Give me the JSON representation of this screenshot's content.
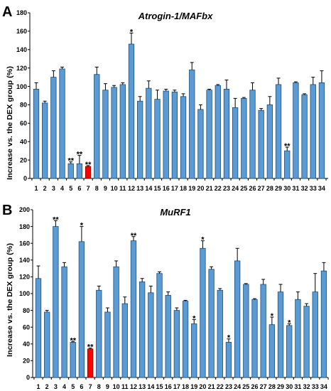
{
  "figure": {
    "background": "#ffffff"
  },
  "chart_data": [
    {
      "panel_label": "A",
      "type": "bar",
      "title": "Atrogin-1/MAFbx",
      "ylabel": "Increase vs. the DEX group (%)",
      "ylim": [
        0,
        180
      ],
      "yticks": [
        0,
        20,
        40,
        60,
        80,
        100,
        120,
        140,
        160,
        180
      ],
      "grid": false,
      "categories": [
        "1",
        "2",
        "3",
        "4",
        "5",
        "6",
        "7",
        "8",
        "9",
        "10",
        "11",
        "12",
        "13",
        "14",
        "15",
        "16",
        "17",
        "18",
        "19",
        "20",
        "21",
        "22",
        "23",
        "24",
        "25",
        "26",
        "27",
        "28",
        "29",
        "30",
        "31",
        "32",
        "33",
        "34"
      ],
      "values": [
        97,
        82,
        110,
        119,
        16,
        16,
        13,
        113,
        96,
        99,
        102,
        146,
        84,
        98,
        86,
        95,
        94,
        89,
        118,
        75,
        96,
        101,
        97,
        77,
        87,
        96,
        74,
        80,
        102,
        30,
        104,
        91,
        102,
        104
      ],
      "error_bars": [
        7,
        2,
        7,
        2,
        2,
        9,
        1,
        8,
        7,
        2,
        2,
        12,
        5,
        8,
        10,
        2,
        2,
        3,
        8,
        5,
        1,
        1,
        10,
        10,
        1,
        8,
        2,
        9,
        7,
        4,
        1,
        1,
        8,
        13
      ],
      "significance": [
        "",
        "",
        "",
        "",
        "**",
        "**",
        "**",
        "",
        "",
        "",
        "",
        "*",
        "",
        "",
        "",
        "",
        "",
        "",
        "",
        "",
        "",
        "",
        "",
        "",
        "",
        "",
        "",
        "",
        "",
        "**",
        "",
        "",
        "",
        ""
      ],
      "bar_colors": [
        "#5b9bd5",
        "#5b9bd5",
        "#5b9bd5",
        "#5b9bd5",
        "#5b9bd5",
        "#5b9bd5",
        "#ff0000",
        "#5b9bd5",
        "#5b9bd5",
        "#5b9bd5",
        "#5b9bd5",
        "#5b9bd5",
        "#5b9bd5",
        "#5b9bd5",
        "#5b9bd5",
        "#5b9bd5",
        "#5b9bd5",
        "#5b9bd5",
        "#5b9bd5",
        "#5b9bd5",
        "#5b9bd5",
        "#5b9bd5",
        "#5b9bd5",
        "#5b9bd5",
        "#5b9bd5",
        "#5b9bd5",
        "#5b9bd5",
        "#5b9bd5",
        "#5b9bd5",
        "#5b9bd5",
        "#5b9bd5",
        "#5b9bd5",
        "#5b9bd5",
        "#5b9bd5"
      ],
      "bar_edge_colors": [
        "#1f4e79",
        "#1f4e79",
        "#1f4e79",
        "#1f4e79",
        "#1f4e79",
        "#1f4e79",
        "#800000",
        "#1f4e79",
        "#1f4e79",
        "#1f4e79",
        "#1f4e79",
        "#1f4e79",
        "#1f4e79",
        "#1f4e79",
        "#1f4e79",
        "#1f4e79",
        "#1f4e79",
        "#1f4e79",
        "#1f4e79",
        "#1f4e79",
        "#1f4e79",
        "#1f4e79",
        "#1f4e79",
        "#1f4e79",
        "#1f4e79",
        "#1f4e79",
        "#1f4e79",
        "#1f4e79",
        "#1f4e79",
        "#1f4e79",
        "#1f4e79",
        "#1f4e79",
        "#1f4e79",
        "#1f4e79"
      ],
      "axis_color": "#000000",
      "error_bar_color": "#000000"
    },
    {
      "panel_label": "B",
      "type": "bar",
      "title": "MuRF1",
      "ylabel": "Increase vs. the DEX group (%)",
      "ylim": [
        0,
        200
      ],
      "yticks": [
        0,
        20,
        40,
        60,
        80,
        100,
        120,
        140,
        160,
        180,
        200
      ],
      "grid": false,
      "categories": [
        "1",
        "2",
        "3",
        "4",
        "5",
        "6",
        "7",
        "8",
        "9",
        "10",
        "11",
        "12",
        "13",
        "14",
        "15",
        "16",
        "17",
        "18",
        "19",
        "20",
        "21",
        "22",
        "23",
        "24",
        "25",
        "26",
        "27",
        "28",
        "29",
        "30",
        "31",
        "32",
        "33",
        "34"
      ],
      "values": [
        118,
        78,
        180,
        132,
        42,
        162,
        34,
        104,
        78,
        132,
        88,
        163,
        114,
        101,
        124,
        98,
        80,
        91,
        64,
        154,
        129,
        104,
        42,
        139,
        111,
        93,
        111,
        63,
        102,
        62,
        93,
        85,
        102,
        127
      ],
      "error_bars": [
        15,
        2,
        7,
        5,
        1,
        18,
        1,
        5,
        5,
        7,
        8,
        5,
        4,
        8,
        2,
        4,
        3,
        1,
        5,
        9,
        3,
        2,
        4,
        15,
        1,
        1,
        6,
        9,
        9,
        2,
        9,
        3,
        22,
        10
      ],
      "significance": [
        "",
        "",
        "**",
        "",
        "**",
        "*",
        "**",
        "",
        "",
        "",
        "",
        "**",
        "",
        "",
        "",
        "",
        "",
        "",
        "*",
        "*",
        "",
        "",
        "*",
        "",
        "",
        "",
        "",
        "*",
        "",
        "*",
        "",
        "",
        "",
        ""
      ],
      "bar_colors": [
        "#5b9bd5",
        "#5b9bd5",
        "#5b9bd5",
        "#5b9bd5",
        "#5b9bd5",
        "#5b9bd5",
        "#ff0000",
        "#5b9bd5",
        "#5b9bd5",
        "#5b9bd5",
        "#5b9bd5",
        "#5b9bd5",
        "#5b9bd5",
        "#5b9bd5",
        "#5b9bd5",
        "#5b9bd5",
        "#5b9bd5",
        "#5b9bd5",
        "#5b9bd5",
        "#5b9bd5",
        "#5b9bd5",
        "#5b9bd5",
        "#5b9bd5",
        "#5b9bd5",
        "#5b9bd5",
        "#5b9bd5",
        "#5b9bd5",
        "#5b9bd5",
        "#5b9bd5",
        "#5b9bd5",
        "#5b9bd5",
        "#5b9bd5",
        "#5b9bd5",
        "#5b9bd5"
      ],
      "bar_edge_colors": [
        "#1f4e79",
        "#1f4e79",
        "#1f4e79",
        "#1f4e79",
        "#1f4e79",
        "#1f4e79",
        "#800000",
        "#1f4e79",
        "#1f4e79",
        "#1f4e79",
        "#1f4e79",
        "#1f4e79",
        "#1f4e79",
        "#1f4e79",
        "#1f4e79",
        "#1f4e79",
        "#1f4e79",
        "#1f4e79",
        "#1f4e79",
        "#1f4e79",
        "#1f4e79",
        "#1f4e79",
        "#1f4e79",
        "#1f4e79",
        "#1f4e79",
        "#1f4e79",
        "#1f4e79",
        "#1f4e79",
        "#1f4e79",
        "#1f4e79",
        "#1f4e79",
        "#1f4e79",
        "#1f4e79",
        "#1f4e79"
      ],
      "axis_color": "#000000",
      "error_bar_color": "#000000"
    }
  ]
}
